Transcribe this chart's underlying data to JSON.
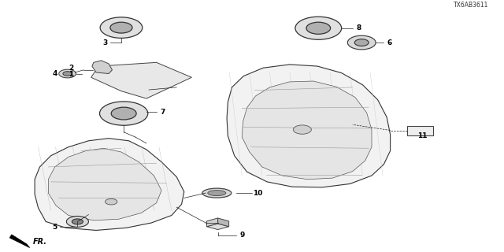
{
  "bg_color": "#ffffff",
  "line_color": "#333333",
  "label_color": "#000000",
  "diagram_code": "TX6AB3611",
  "fr_label": "FR."
}
